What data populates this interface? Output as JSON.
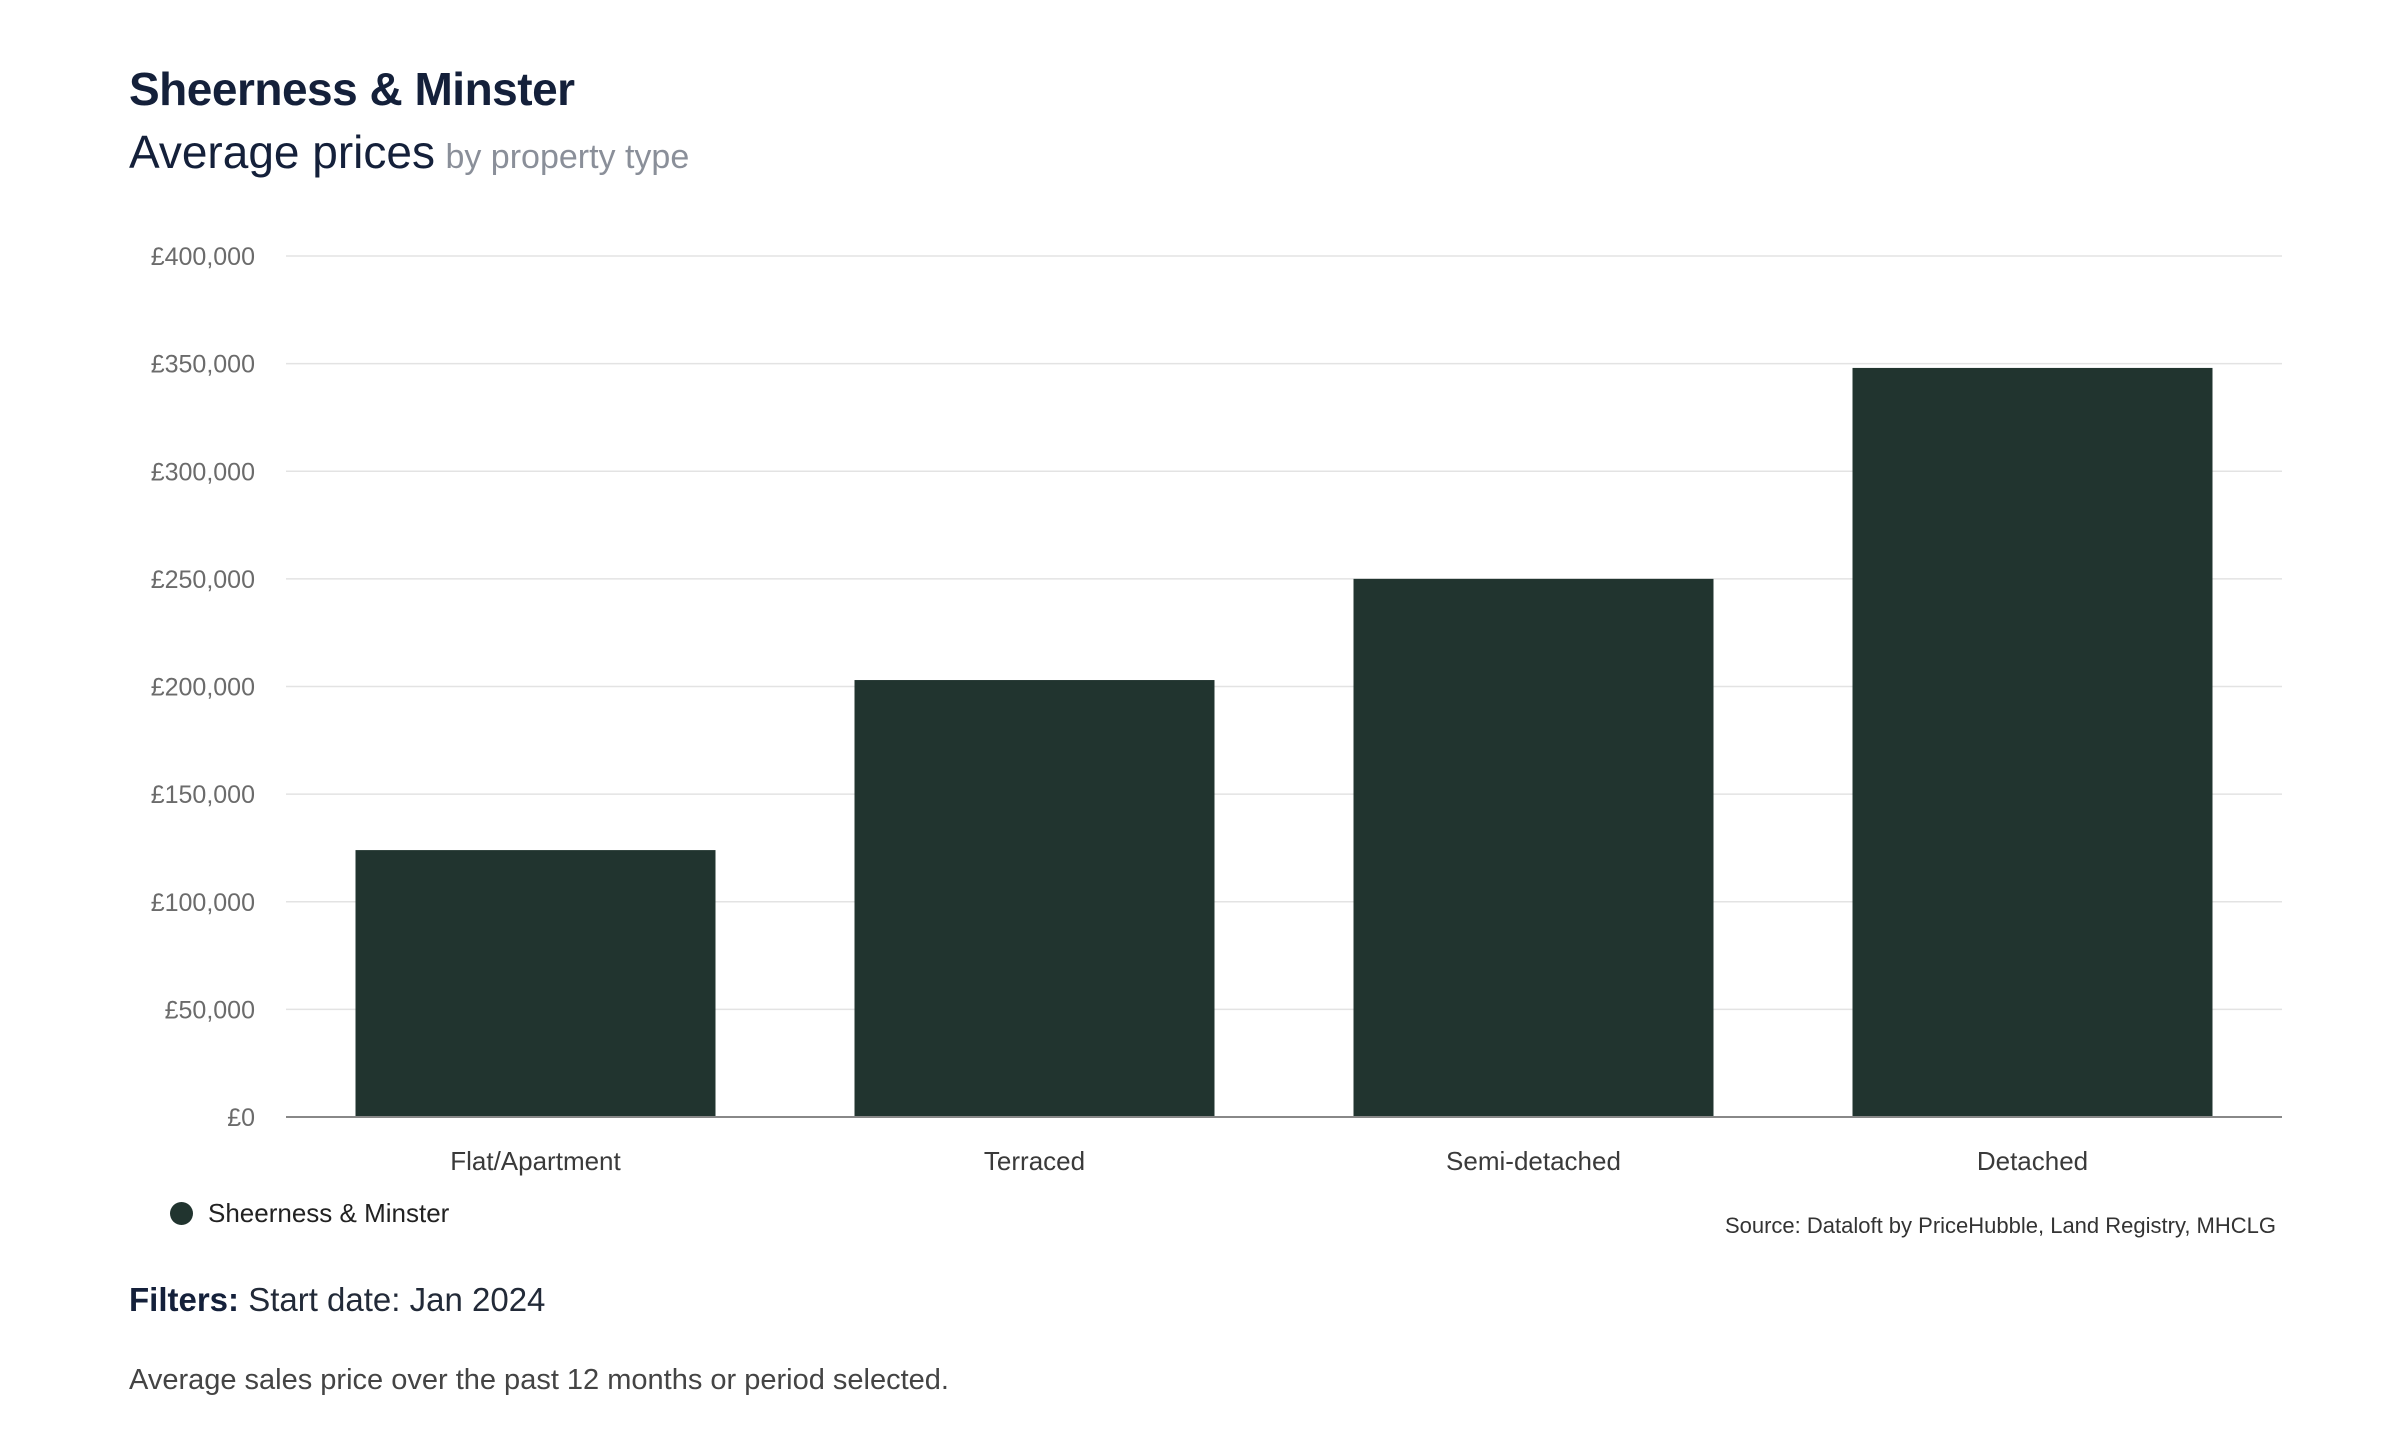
{
  "header": {
    "title": "Sheerness & Minster",
    "subtitle_main": "Average prices",
    "subtitle_sub": "by property type"
  },
  "chart_data": {
    "type": "bar",
    "title": "",
    "xlabel": "",
    "ylabel": "",
    "categories": [
      "Flat/Apartment",
      "Terraced",
      "Semi-detached",
      "Detached"
    ],
    "series": [
      {
        "name": "Sheerness & Minster",
        "color": "#21342f",
        "values": [
          124000,
          203000,
          250000,
          348000
        ]
      }
    ],
    "ylim": [
      0,
      400000
    ],
    "y_ticks": [
      0,
      50000,
      100000,
      150000,
      200000,
      250000,
      300000,
      350000,
      400000
    ],
    "y_tick_labels": [
      "£0",
      "£50,000",
      "£100,000",
      "£150,000",
      "£200,000",
      "£250,000",
      "£300,000",
      "£350,000",
      "£400,000"
    ],
    "grid": true,
    "legend_position": "bottom-left"
  },
  "legend": {
    "label": "Sheerness & Minster",
    "color": "#21342f"
  },
  "source": "Source: Dataloft by PriceHubble, Land Registry, MHCLG",
  "filters": {
    "label": "Filters:",
    "value": "Start date: Jan 2024"
  },
  "note": "Average sales price over the past 12 months or period selected."
}
